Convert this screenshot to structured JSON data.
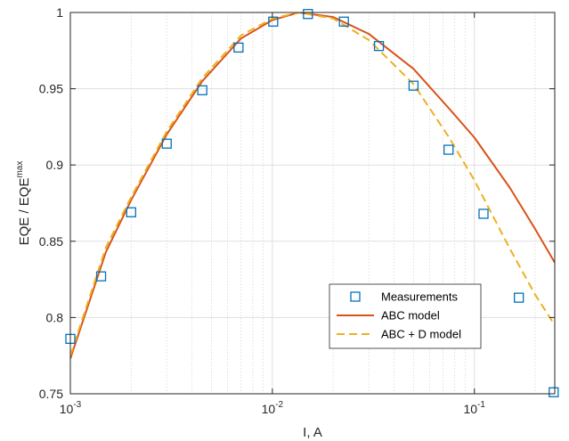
{
  "chart_data": {
    "type": "line",
    "title": "",
    "xlabel": "I, A",
    "ylabel_base": "EQE / EQE",
    "ylabel_sup": "max",
    "xscale": "log",
    "xlim": [
      0.001,
      0.25
    ],
    "ylim": [
      0.75,
      1.0
    ],
    "x_ticks": [
      {
        "value": 0.001,
        "base": "10",
        "exp": "-3"
      },
      {
        "value": 0.01,
        "base": "10",
        "exp": "-2"
      },
      {
        "value": 0.1,
        "base": "10",
        "exp": "-1"
      }
    ],
    "y_ticks": [
      {
        "value": 0.75,
        "label": "0.75"
      },
      {
        "value": 0.8,
        "label": "0.8"
      },
      {
        "value": 0.85,
        "label": "0.85"
      },
      {
        "value": 0.9,
        "label": "0.9"
      },
      {
        "value": 0.95,
        "label": "0.95"
      },
      {
        "value": 1.0,
        "label": "1"
      }
    ],
    "grid": true,
    "minor_grid_x": true,
    "legend_position": "bottom-right",
    "series": [
      {
        "name": "Measurements",
        "style": "square-marker",
        "color": "#0072BD",
        "points": [
          [
            0.001,
            0.786
          ],
          [
            0.00142,
            0.827
          ],
          [
            0.002,
            0.869
          ],
          [
            0.003,
            0.914
          ],
          [
            0.0045,
            0.949
          ],
          [
            0.0068,
            0.977
          ],
          [
            0.0101,
            0.994
          ],
          [
            0.015,
            0.999
          ],
          [
            0.0226,
            0.994
          ],
          [
            0.0337,
            0.978
          ],
          [
            0.05,
            0.952
          ],
          [
            0.0745,
            0.91
          ],
          [
            0.111,
            0.868
          ],
          [
            0.166,
            0.813
          ],
          [
            0.247,
            0.751
          ]
        ]
      },
      {
        "name": "ABC model",
        "style": "solid-line",
        "color": "#D95319",
        "points": [
          [
            0.001,
            0.773
          ],
          [
            0.0015,
            0.843
          ],
          [
            0.002,
            0.877
          ],
          [
            0.003,
            0.92
          ],
          [
            0.0045,
            0.955
          ],
          [
            0.007,
            0.983
          ],
          [
            0.01,
            0.995
          ],
          [
            0.0135,
            1.0
          ],
          [
            0.02,
            0.997
          ],
          [
            0.03,
            0.986
          ],
          [
            0.05,
            0.963
          ],
          [
            0.075,
            0.937
          ],
          [
            0.1,
            0.918
          ],
          [
            0.15,
            0.885
          ],
          [
            0.2,
            0.858
          ],
          [
            0.25,
            0.836
          ]
        ]
      },
      {
        "name": "ABC + D model",
        "style": "dashed-line",
        "color": "#EDB120",
        "points": [
          [
            0.001,
            0.775
          ],
          [
            0.0015,
            0.846
          ],
          [
            0.002,
            0.879
          ],
          [
            0.003,
            0.922
          ],
          [
            0.0045,
            0.957
          ],
          [
            0.007,
            0.985
          ],
          [
            0.01,
            0.996
          ],
          [
            0.0135,
            1.0
          ],
          [
            0.02,
            0.996
          ],
          [
            0.03,
            0.982
          ],
          [
            0.05,
            0.953
          ],
          [
            0.075,
            0.918
          ],
          [
            0.1,
            0.89
          ],
          [
            0.15,
            0.845
          ],
          [
            0.2,
            0.815
          ],
          [
            0.25,
            0.795
          ]
        ]
      }
    ]
  }
}
